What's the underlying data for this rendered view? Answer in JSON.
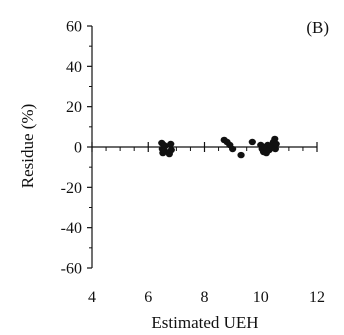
{
  "chart_data": {
    "type": "scatter",
    "panel_label": "(B)",
    "xlabel": "Estimated UEH",
    "ylabel": "Residue (%)",
    "xlim": [
      4,
      12
    ],
    "ylim": [
      -60,
      60
    ],
    "x_ticks": [
      4,
      6,
      8,
      10,
      12
    ],
    "y_ticks": [
      60,
      40,
      20,
      0,
      -20,
      -40,
      -60
    ],
    "x_tick_labels": [
      "4",
      "6",
      "8",
      "10",
      "12"
    ],
    "y_tick_labels": [
      "60",
      "40",
      "20",
      "0",
      "-20",
      "-40",
      "-60"
    ],
    "x_minor_step": 0.5,
    "y_minor_step": 10,
    "grid": false,
    "legend": "none",
    "marker_color": "#111111",
    "axis_color": "#111111",
    "series": [
      {
        "points": [
          {
            "x": 6.48,
            "y": 2.0
          },
          {
            "x": 6.5,
            "y": -1.0
          },
          {
            "x": 6.52,
            "y": -3.0
          },
          {
            "x": 6.55,
            "y": 1.0
          },
          {
            "x": 6.58,
            "y": -2.0
          },
          {
            "x": 6.6,
            "y": 0.5
          },
          {
            "x": 6.75,
            "y": -3.5
          },
          {
            "x": 6.8,
            "y": 1.5
          },
          {
            "x": 6.82,
            "y": -1.5
          },
          {
            "x": 8.7,
            "y": 3.5
          },
          {
            "x": 8.8,
            "y": 2.5
          },
          {
            "x": 8.9,
            "y": 1.0
          },
          {
            "x": 9.0,
            "y": -1.0
          },
          {
            "x": 9.3,
            "y": -4.0
          },
          {
            "x": 9.7,
            "y": 2.5
          },
          {
            "x": 10.0,
            "y": 1.0
          },
          {
            "x": 10.05,
            "y": -1.0
          },
          {
            "x": 10.1,
            "y": -2.5
          },
          {
            "x": 10.15,
            "y": 0.0
          },
          {
            "x": 10.2,
            "y": -3.0
          },
          {
            "x": 10.25,
            "y": 1.0
          },
          {
            "x": 10.3,
            "y": -1.5
          },
          {
            "x": 10.38,
            "y": 0.5
          },
          {
            "x": 10.45,
            "y": 2.5
          },
          {
            "x": 10.5,
            "y": 4.0
          },
          {
            "x": 10.52,
            "y": -1.0
          },
          {
            "x": 10.55,
            "y": 1.5
          }
        ]
      }
    ]
  }
}
